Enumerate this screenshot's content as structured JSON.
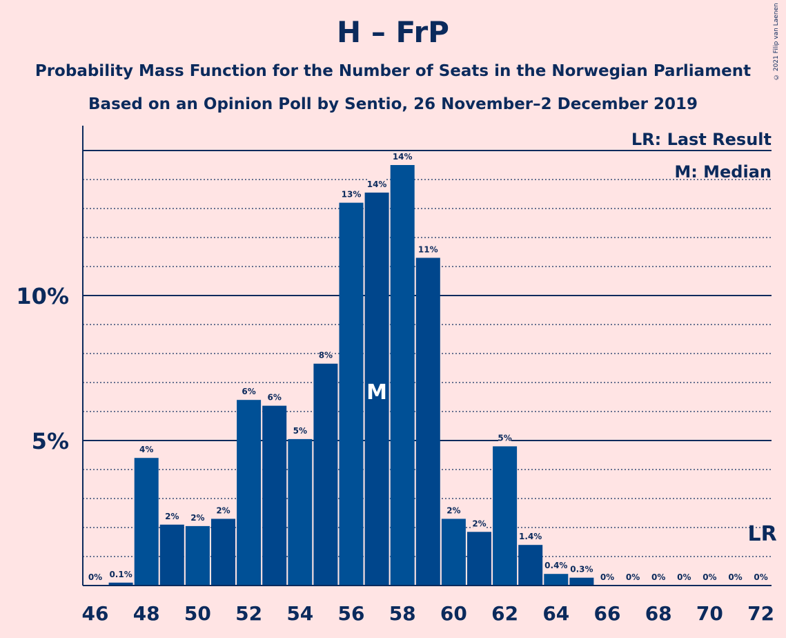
{
  "header": {
    "title": "H – FrP",
    "subtitle1": "Probability Mass Function for the Number of Seats in the Norwegian Parliament",
    "subtitle2": "Based on an Opinion Poll by Sentio, 26 November–2 December 2019",
    "copyright": "© 2021 Filip van Laenen"
  },
  "legend": {
    "last_result": "LR: Last Result",
    "median": "M: Median"
  },
  "markers": {
    "median_label": "M",
    "median_seat": 57,
    "last_result_label": "LR",
    "last_result_seat": 72
  },
  "colors": {
    "background": "#ffe4e4",
    "bar_a": "#005096",
    "bar_b": "#00468c",
    "text": "#0b2a5c"
  },
  "chart_data": {
    "type": "bar",
    "title": "H – FrP",
    "x": [
      46,
      47,
      48,
      49,
      50,
      51,
      52,
      53,
      54,
      55,
      56,
      57,
      58,
      59,
      60,
      61,
      62,
      63,
      64,
      65,
      66,
      67,
      68,
      69,
      70,
      71,
      72
    ],
    "values": [
      0,
      0.1,
      4.4,
      2.1,
      2.05,
      2.3,
      6.4,
      6.2,
      5.05,
      7.65,
      13.2,
      13.55,
      14.5,
      11.3,
      2.3,
      1.85,
      4.8,
      1.4,
      0.4,
      0.27,
      0,
      0,
      0,
      0,
      0,
      0,
      0
    ],
    "data_labels": [
      "0%",
      "0.1%",
      "4%",
      "2%",
      "2%",
      "2%",
      "6%",
      "6%",
      "5%",
      "8%",
      "13%",
      "14%",
      "14%",
      "11%",
      "2%",
      "2%",
      "5%",
      "1.4%",
      "0.4%",
      "0.3%",
      "0%",
      "0%",
      "0%",
      "0%",
      "0%",
      "0%",
      "0%"
    ],
    "x_tick_labels": [
      "46",
      "48",
      "50",
      "52",
      "54",
      "56",
      "58",
      "60",
      "62",
      "64",
      "66",
      "68",
      "70",
      "72"
    ],
    "y_tick_labels": [
      {
        "value": 5,
        "label": "5%"
      },
      {
        "value": 10,
        "label": "10%"
      }
    ],
    "ylim": [
      0,
      15.8
    ],
    "grid": "dotted every 1%, solid at 5% and 10%",
    "legend_placement": "top-right"
  }
}
